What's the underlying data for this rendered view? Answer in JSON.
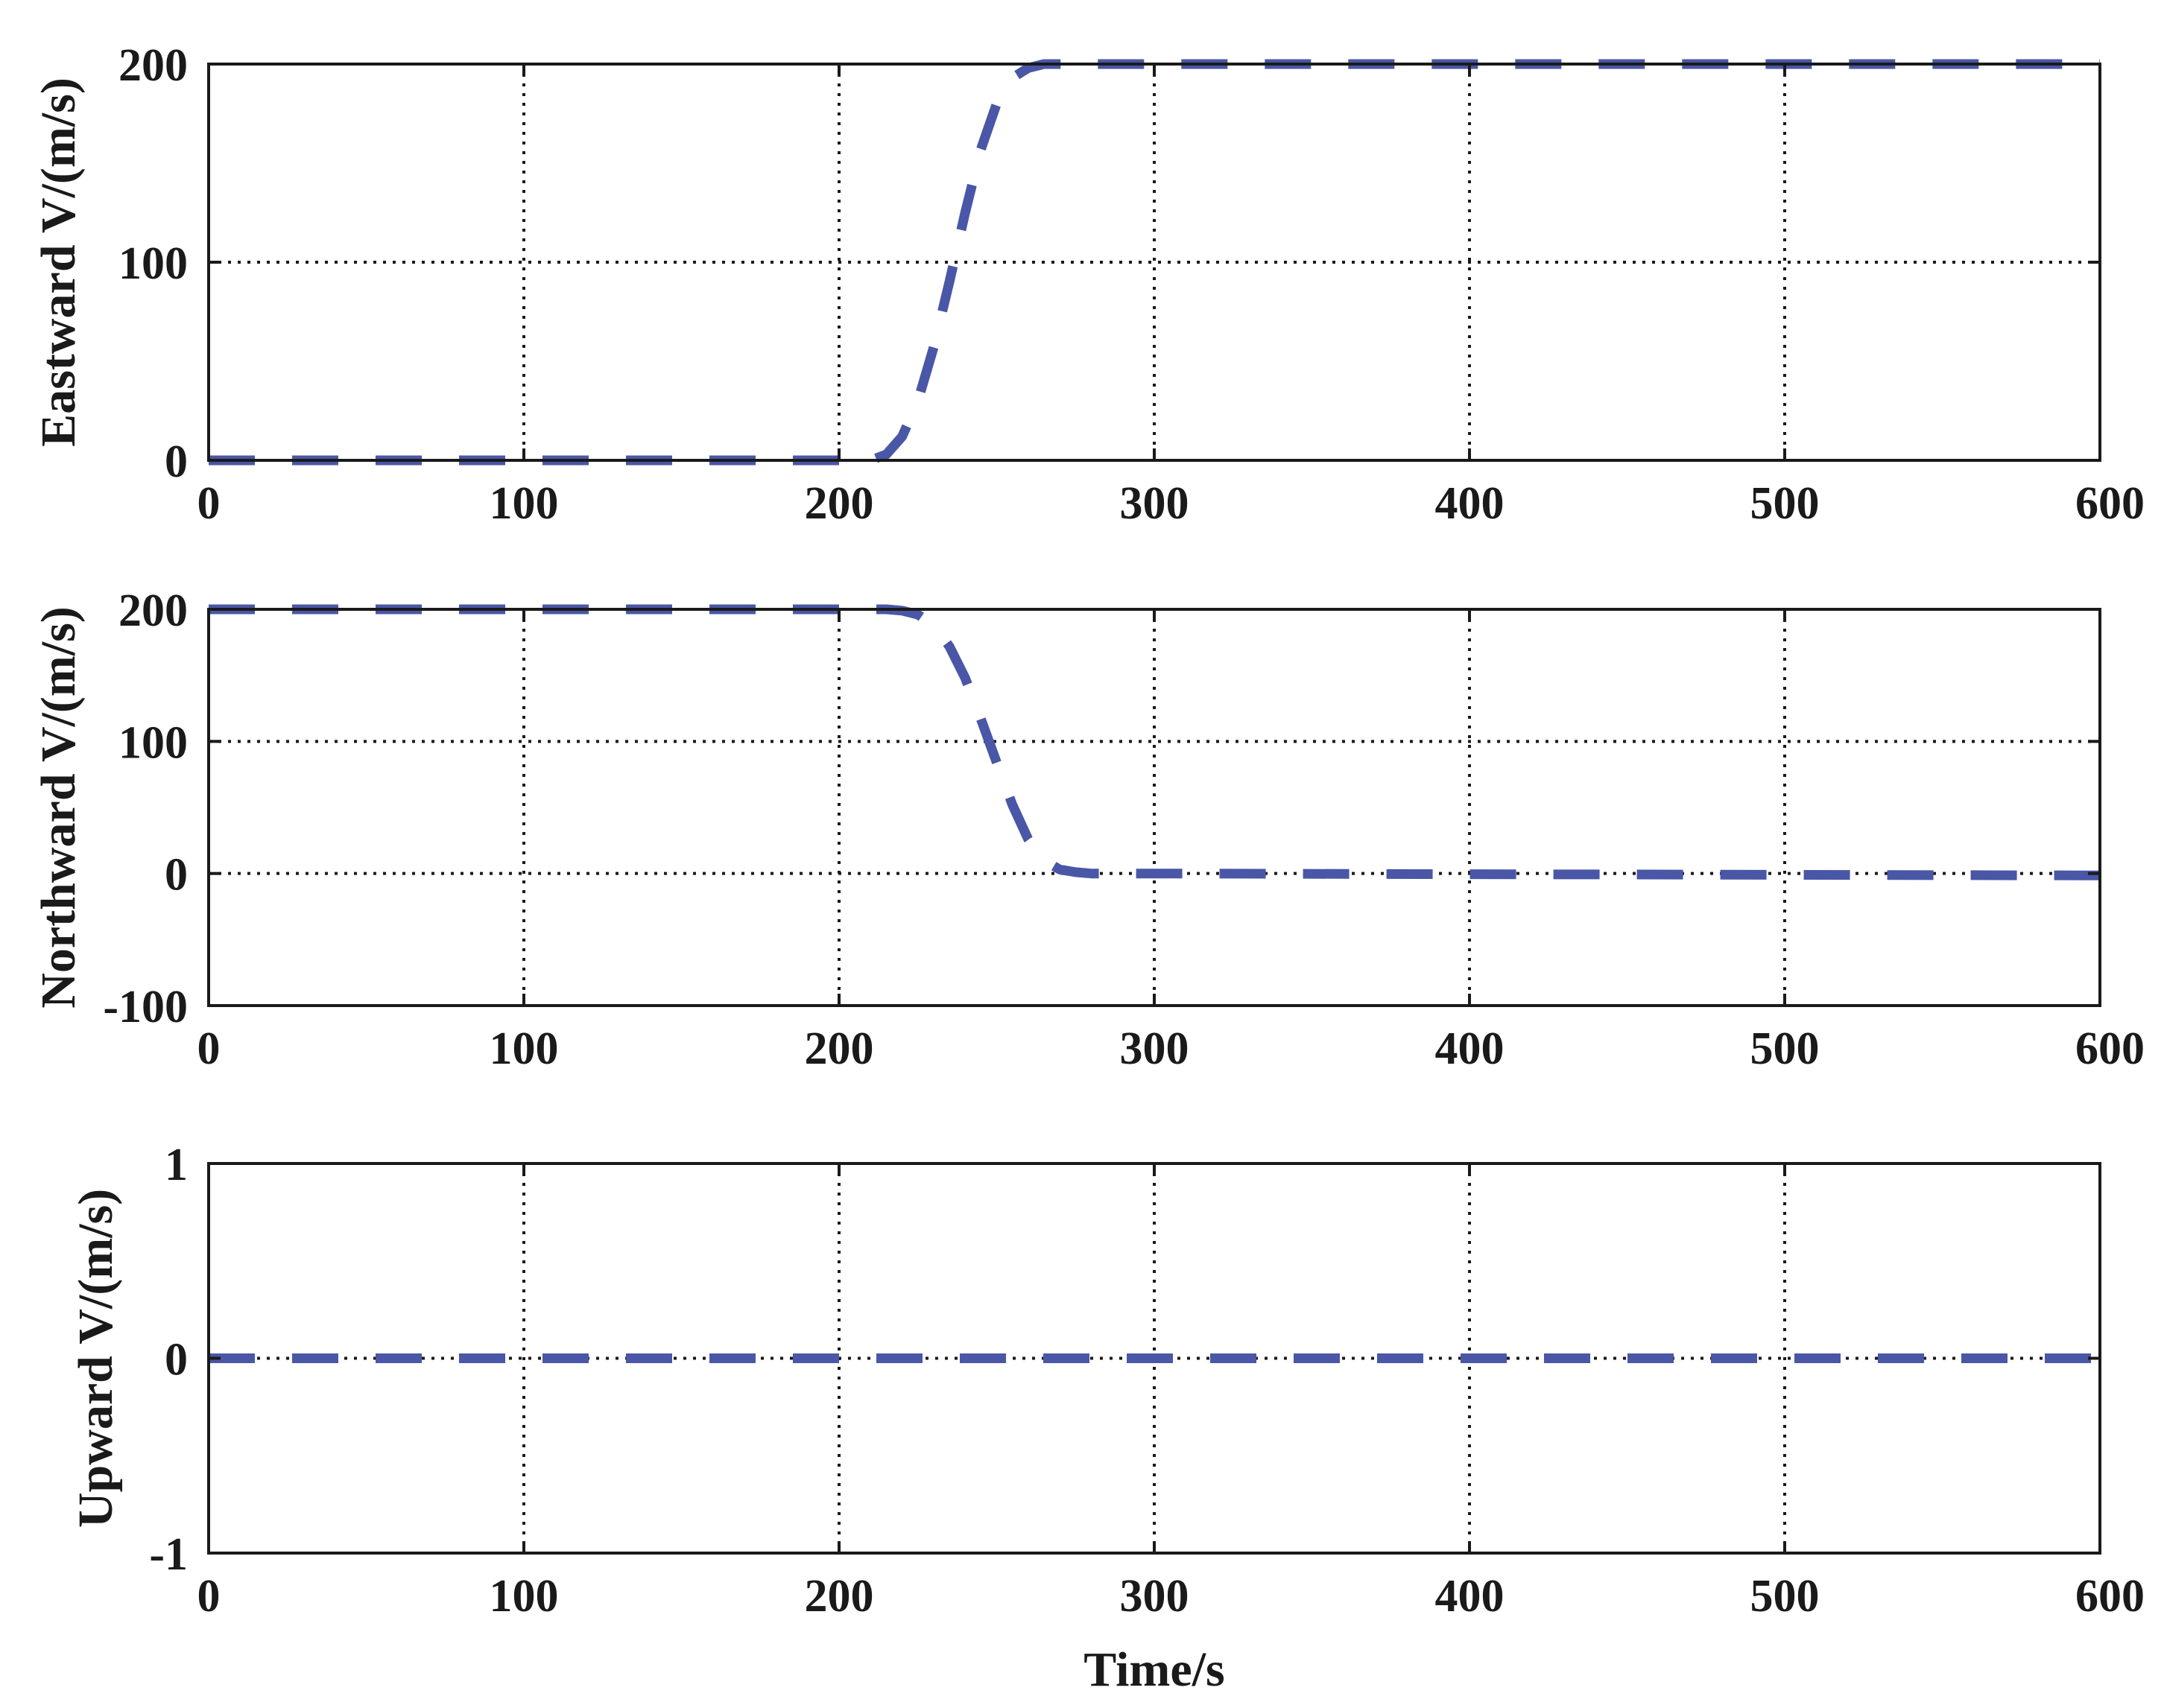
{
  "series_color": "#4a56a6",
  "axis_color": "#1a1a1a",
  "chart_data": [
    {
      "type": "line",
      "ylabel": "Eastward V/(m/s)",
      "xlabel": "",
      "xlim": [
        0,
        600
      ],
      "ylim": [
        0,
        200
      ],
      "xticks": [
        0,
        100,
        200,
        300,
        400,
        500,
        600
      ],
      "xtick_labels": [
        "0",
        "100",
        "200",
        "300",
        "400",
        "500",
        "600"
      ],
      "yticks": [
        0,
        100,
        200
      ],
      "ytick_labels": [
        "0",
        "100",
        "200"
      ],
      "grid": true,
      "series": [
        {
          "line_style": "dashed",
          "x": [
            0,
            100,
            200,
            210,
            215,
            220,
            225,
            230,
            235,
            240,
            245,
            250,
            255,
            260,
            265,
            270,
            300,
            400,
            500,
            600
          ],
          "y": [
            0,
            0,
            0,
            0,
            3,
            12,
            30,
            57,
            90,
            125,
            157,
            180,
            193,
            198,
            200,
            200,
            200,
            200,
            200,
            200
          ]
        }
      ]
    },
    {
      "type": "line",
      "ylabel": "Northward V/(m/s)",
      "xlabel": "",
      "xlim": [
        0,
        600
      ],
      "ylim": [
        -100,
        200
      ],
      "xticks": [
        0,
        100,
        200,
        300,
        400,
        500,
        600
      ],
      "xtick_labels": [
        "0",
        "100",
        "200",
        "300",
        "400",
        "500",
        "600"
      ],
      "yticks": [
        -100,
        0,
        100,
        200
      ],
      "ytick_labels": [
        "-100",
        "0",
        "100",
        "200"
      ],
      "grid": true,
      "series": [
        {
          "line_style": "dashed",
          "x": [
            0,
            100,
            200,
            215,
            220,
            225,
            230,
            235,
            240,
            245,
            250,
            255,
            260,
            265,
            270,
            275,
            280,
            300,
            400,
            500,
            600
          ],
          "y": [
            200,
            200,
            200,
            200,
            199,
            196,
            188,
            172,
            148,
            117,
            84,
            52,
            26,
            10,
            3,
            1,
            0,
            0,
            -0.5,
            -1,
            -1.5
          ]
        }
      ]
    },
    {
      "type": "line",
      "ylabel": "Upward V/(m/s)",
      "xlabel": "Time/s",
      "xlim": [
        0,
        600
      ],
      "ylim": [
        -1,
        1
      ],
      "xticks": [
        0,
        100,
        200,
        300,
        400,
        500,
        600
      ],
      "xtick_labels": [
        "0",
        "100",
        "200",
        "300",
        "400",
        "500",
        "600"
      ],
      "yticks": [
        -1,
        0,
        1
      ],
      "ytick_labels": [
        "-1",
        "0",
        "1"
      ],
      "grid": true,
      "series": [
        {
          "line_style": "dashed",
          "x": [
            0,
            600
          ],
          "y": [
            0,
            0
          ]
        }
      ]
    }
  ]
}
